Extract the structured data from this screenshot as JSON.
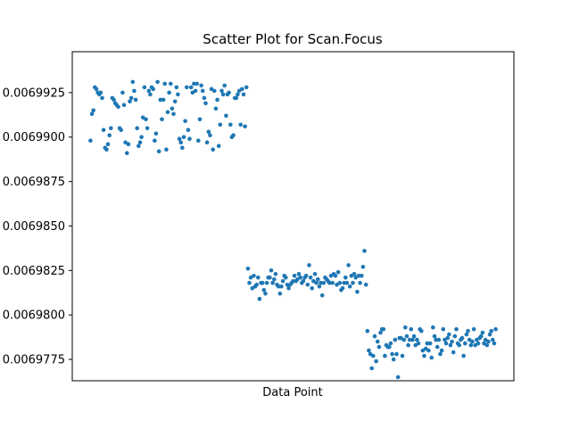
{
  "chart_data": {
    "type": "scatter",
    "title": "Scatter Plot for Scan.Focus",
    "xlabel": "Data Point",
    "ylabel": "",
    "x_ticks_visible": false,
    "ylim": [
      0.0069763,
      0.0069948
    ],
    "y_ticks": [
      {
        "value": 0.0069775,
        "label": "0.0069775"
      },
      {
        "value": 0.00698,
        "label": "0.0069800"
      },
      {
        "value": 0.0069825,
        "label": "0.0069825"
      },
      {
        "value": 0.006985,
        "label": "0.0069850"
      },
      {
        "value": 0.0069875,
        "label": "0.0069875"
      },
      {
        "value": 0.00699,
        "label": "0.0069900"
      },
      {
        "value": 0.0069925,
        "label": "0.0069925"
      }
    ],
    "marker_color": "#1f77b4",
    "grid": false,
    "series": [
      {
        "x": [
          0,
          1,
          2,
          3,
          4,
          5,
          6,
          7,
          8,
          9,
          10,
          11,
          12,
          13,
          14,
          15,
          16,
          17,
          18,
          19,
          20,
          21,
          22,
          23,
          24,
          25,
          26,
          27,
          28,
          29,
          30,
          31,
          32,
          33,
          34,
          35,
          36,
          37,
          38,
          39,
          40,
          41,
          42,
          43,
          44,
          45,
          46,
          47,
          48,
          49,
          50,
          51,
          52,
          53,
          54,
          55,
          56,
          57,
          58,
          59,
          60,
          61,
          62,
          63,
          64,
          65,
          66,
          67,
          68,
          69,
          70,
          71,
          72,
          73,
          74,
          75,
          76,
          77,
          78,
          79,
          80,
          81,
          82,
          83,
          84,
          85,
          86,
          87,
          88,
          89,
          90,
          91,
          92,
          93,
          94,
          95,
          96,
          97,
          98,
          99,
          100,
          101,
          102,
          103,
          104,
          105,
          106,
          107,
          108,
          109,
          110,
          111,
          112,
          113,
          114,
          115,
          116,
          117,
          118,
          119,
          120,
          121,
          122,
          123,
          124,
          125,
          126,
          127,
          128,
          129,
          130,
          131,
          132,
          133,
          134,
          135,
          136,
          137,
          138,
          139,
          140,
          141,
          142,
          143,
          144,
          145,
          146,
          147,
          148,
          149
        ],
        "y": [
          0.0069898,
          0.0069913,
          0.0069915,
          0.0069928,
          0.0069927,
          0.0069925,
          0.0069924,
          0.0069925,
          0.0069922,
          0.0069904,
          0.0069894,
          0.0069893,
          0.0069896,
          0.0069901,
          0.0069905,
          0.0069922,
          0.0069921,
          0.0069919,
          0.0069918,
          0.0069917,
          0.0069905,
          0.0069904,
          0.0069925,
          0.0069918,
          0.0069897,
          0.0069891,
          0.0069896,
          0.006992,
          0.0069922,
          0.0069931,
          0.0069926,
          0.0069921,
          0.0069905,
          0.0069895,
          0.0069897,
          0.00699,
          0.0069911,
          0.0069928,
          0.006991,
          0.0069905,
          0.0069926,
          0.0069924,
          0.0069928,
          0.0069927,
          0.0069898,
          0.0069902,
          0.0069931,
          0.0069892,
          0.0069921,
          0.006991,
          0.0069921,
          0.006993,
          0.0069893,
          0.0069914,
          0.0069925,
          0.006993,
          0.0069916,
          0.0069913,
          0.006992,
          0.0069928,
          0.0069924,
          0.0069899,
          0.0069897,
          0.0069894,
          0.00699,
          0.0069909,
          0.0069928,
          0.0069904,
          0.0069899,
          0.0069928,
          0.0069925,
          0.006993,
          0.0069926,
          0.006993,
          0.0069898,
          0.006991,
          0.0069929,
          0.0069926,
          0.0069922,
          0.0069919,
          0.0069897,
          0.0069903,
          0.0069901,
          0.0069927,
          0.0069893,
          0.0069926,
          0.0069916,
          0.0069921,
          0.0069895,
          0.0069907,
          0.0069926,
          0.0069924,
          0.0069929,
          0.0069912,
          0.0069924,
          0.0069925,
          0.0069907,
          0.00699,
          0.0069901,
          0.0069922,
          0.0069922,
          0.0069924,
          0.0069926,
          0.0069907,
          0.0069927,
          0.0069924,
          0.0069906,
          0.0069928,
          0.0069826,
          0.0069818,
          0.0069821,
          0.0069815,
          0.0069822,
          0.0069816,
          0.0069817,
          0.0069821,
          0.0069809,
          0.0069818,
          0.0069818,
          0.0069814,
          0.0069812,
          0.0069818,
          0.0069821,
          0.0069821,
          0.0069825,
          0.0069818,
          0.006982,
          0.0069823,
          0.0069817,
          0.0069816,
          0.0069812,
          0.0069816,
          0.0069819,
          0.0069822,
          0.0069821,
          0.0069817,
          0.0069815,
          0.0069817,
          0.0069818,
          0.0069819,
          0.0069822,
          0.0069819,
          0.006982,
          0.0069823,
          0.0069821,
          0.0069818,
          0.0069819,
          0.0069821,
          0.0069822,
          0.0069817
        ]
      },
      {
        "x": [
          150,
          151,
          152,
          153,
          154,
          155,
          156,
          157,
          158,
          159,
          160,
          161,
          162,
          163,
          164,
          165,
          166,
          167,
          168,
          169,
          170,
          171,
          172,
          173,
          174,
          175,
          176,
          177,
          178,
          179,
          180,
          181,
          182,
          183,
          184,
          185,
          186,
          187,
          188,
          189,
          190,
          191,
          192,
          193,
          194,
          195,
          196,
          197,
          198,
          199,
          200,
          201,
          202,
          203,
          204,
          205,
          206,
          207,
          208,
          209,
          210,
          211,
          212,
          213,
          214,
          215,
          216,
          217,
          218,
          219,
          220,
          221,
          222,
          223,
          224,
          225,
          226,
          227,
          228,
          229,
          230,
          231,
          232,
          233,
          234,
          235,
          236,
          237,
          238,
          239,
          240,
          241,
          242,
          243,
          244,
          245,
          246,
          247,
          248,
          249,
          250,
          251,
          252,
          253,
          254,
          255,
          256,
          257,
          258,
          259,
          260,
          261,
          262,
          263,
          264,
          265,
          266,
          267,
          268,
          269,
          270,
          271,
          272,
          273,
          274,
          275,
          276,
          277,
          278
        ],
        "y": [
          0.0069828,
          0.0069821,
          0.0069815,
          0.0069819,
          0.0069823,
          0.0069818,
          0.006982,
          0.0069816,
          0.0069818,
          0.0069811,
          0.0069818,
          0.0069821,
          0.006982,
          0.0069819,
          0.0069818,
          0.0069822,
          0.0069818,
          0.0069823,
          0.0069822,
          0.0069817,
          0.0069824,
          0.0069818,
          0.0069814,
          0.0069815,
          0.0069818,
          0.0069821,
          0.0069818,
          0.0069828,
          0.0069816,
          0.0069822,
          0.0069818,
          0.0069823,
          0.0069821,
          0.0069813,
          0.0069822,
          0.0069818,
          0.0069822,
          0.0069827,
          0.0069836,
          0.0069817,
          0.0069791,
          0.006978,
          0.0069778,
          0.006977,
          0.0069777,
          0.0069788,
          0.0069774,
          0.0069785,
          0.0069782,
          0.006979,
          0.0069792,
          0.0069792,
          0.0069777,
          0.0069783,
          0.0069782,
          0.0069782,
          0.0069784,
          0.0069778,
          0.0069775,
          0.0069786,
          0.0069778,
          0.0069765,
          0.0069787,
          0.0069787,
          0.0069777,
          0.0069786,
          0.0069793,
          0.0069788,
          0.0069783,
          0.0069786,
          0.0069792,
          0.0069786,
          0.0069788,
          0.0069783,
          0.0069786,
          0.0069784,
          0.0069792,
          0.0069791,
          0.006978,
          0.0069777,
          0.0069781,
          0.0069784,
          0.006978,
          0.0069784,
          0.0069776,
          0.0069793,
          0.0069788,
          0.0069786,
          0.0069782,
          0.0069786,
          0.0069778,
          0.006978,
          0.0069792,
          0.0069786,
          0.0069784,
          0.0069787,
          0.0069789,
          0.0069783,
          0.0069785,
          0.0069779,
          0.0069788,
          0.0069792,
          0.0069784,
          0.0069783,
          0.0069786,
          0.0069787,
          0.0069777,
          0.0069784,
          0.0069789,
          0.0069791,
          0.0069786,
          0.0069783,
          0.0069785,
          0.0069792,
          0.0069783,
          0.0069786,
          0.0069784,
          0.0069787,
          0.0069788,
          0.006979,
          0.0069784,
          0.0069786,
          0.0069783,
          0.0069785,
          0.0069789,
          0.0069791,
          0.0069786,
          0.0069784,
          0.0069792
        ]
      }
    ]
  }
}
